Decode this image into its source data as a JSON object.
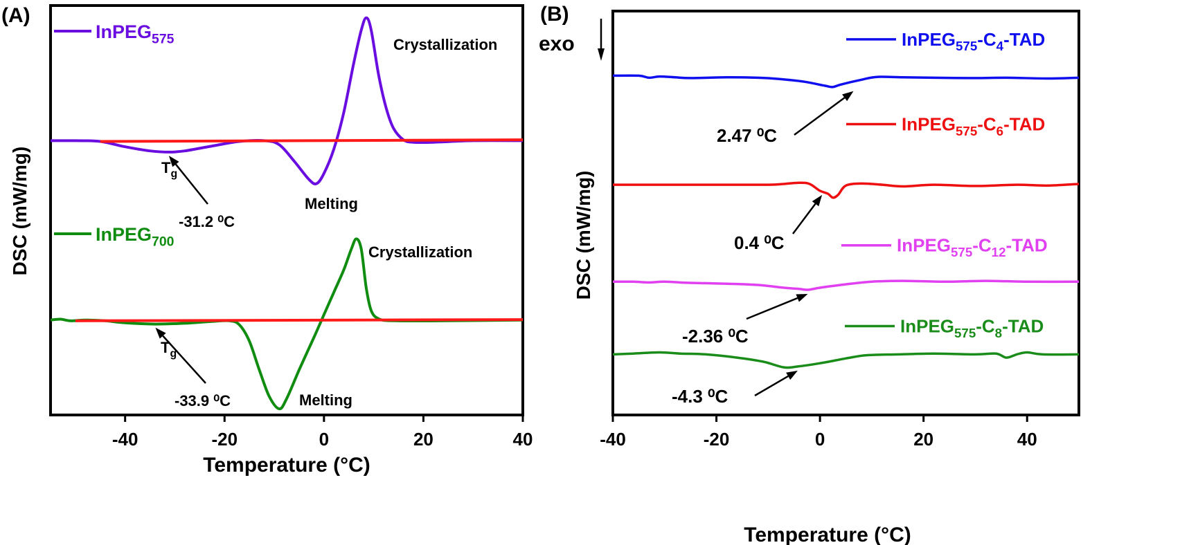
{
  "chart_data": [
    {
      "panel_label": "(A)",
      "type": "line",
      "title": "",
      "xlabel": "Temperature (°C)",
      "ylabel": "DSC (mW/mg)",
      "xlim": [
        -55,
        40
      ],
      "ylim": [
        0,
        10
      ],
      "x_ticks": [
        -40,
        -20,
        0,
        20,
        40
      ],
      "x_tick_labels": [
        "-40",
        "-20",
        "0",
        "20",
        "40"
      ],
      "grid": false,
      "series": [
        {
          "name": "InPEG575",
          "label_main": "InPEG",
          "label_sub": "575",
          "color": "#6a0de0",
          "baseline": 6.7,
          "points": [
            [
              -55,
              6.7
            ],
            [
              -50,
              6.7
            ],
            [
              -45,
              6.68
            ],
            [
              -40,
              6.55
            ],
            [
              -35,
              6.45
            ],
            [
              -31.2,
              6.42
            ],
            [
              -28,
              6.45
            ],
            [
              -22,
              6.58
            ],
            [
              -17,
              6.68
            ],
            [
              -12,
              6.7
            ],
            [
              -9,
              6.6
            ],
            [
              -6,
              6.2
            ],
            [
              -3,
              5.75
            ],
            [
              -1.5,
              5.65
            ],
            [
              0,
              5.9
            ],
            [
              2,
              6.5
            ],
            [
              4,
              7.4
            ],
            [
              6,
              8.6
            ],
            [
              7.5,
              9.4
            ],
            [
              8.5,
              9.7
            ],
            [
              9.5,
              9.4
            ],
            [
              11,
              8.3
            ],
            [
              12.5,
              7.5
            ],
            [
              14,
              7.0
            ],
            [
              16,
              6.72
            ],
            [
              18,
              6.66
            ],
            [
              22,
              6.66
            ],
            [
              30,
              6.7
            ],
            [
              40,
              6.7
            ]
          ],
          "reference_line": [
            [
              -45,
              6.68
            ],
            [
              40,
              6.72
            ]
          ],
          "reference_color": "#ff1a1a",
          "annotations": [
            {
              "text": "Crystallization",
              "x": 9,
              "y": 9.7
            },
            {
              "text": "Melting",
              "x": -2,
              "y": 5.65
            },
            {
              "text_main": "T",
              "text_sub": "g",
              "x": -32,
              "y": 6.4
            },
            {
              "text": "-31.2 ⁰C",
              "value_c": -31.2
            }
          ]
        },
        {
          "name": "InPEG700",
          "label_main": "InPEG",
          "label_sub": "700",
          "color": "#108c10",
          "baseline": 2.3,
          "points": [
            [
              -55,
              2.32
            ],
            [
              -53,
              2.34
            ],
            [
              -51,
              2.3
            ],
            [
              -48,
              2.32
            ],
            [
              -44,
              2.3
            ],
            [
              -40,
              2.25
            ],
            [
              -34,
              2.22
            ],
            [
              -28,
              2.24
            ],
            [
              -23,
              2.28
            ],
            [
              -19,
              2.3
            ],
            [
              -17,
              2.2
            ],
            [
              -15,
              1.8
            ],
            [
              -13,
              1.1
            ],
            [
              -11,
              0.45
            ],
            [
              -9,
              0.15
            ],
            [
              -7.5,
              0.4
            ],
            [
              -5,
              1.1
            ],
            [
              -2,
              1.9
            ],
            [
              0,
              2.45
            ],
            [
              2,
              3.0
            ],
            [
              4,
              3.55
            ],
            [
              5.5,
              4.05
            ],
            [
              6.5,
              4.3
            ],
            [
              7.5,
              4.05
            ],
            [
              8.5,
              3.1
            ],
            [
              9.5,
              2.55
            ],
            [
              11,
              2.35
            ],
            [
              14,
              2.3
            ],
            [
              25,
              2.3
            ],
            [
              40,
              2.32
            ]
          ],
          "reference_line": [
            [
              -50,
              2.3
            ],
            [
              40,
              2.33
            ]
          ],
          "reference_color": "#ff1a1a",
          "annotations": [
            {
              "text": "Crystallization",
              "x": 6.5,
              "y": 4.3
            },
            {
              "text": "Melting",
              "x": -8,
              "y": 0.15
            },
            {
              "text_main": "T",
              "text_sub": "g",
              "x": -34,
              "y": 2.2
            },
            {
              "text": "-33.9 ⁰C",
              "value_c": -33.9
            }
          ]
        }
      ]
    },
    {
      "panel_label": "(B)",
      "type": "line",
      "title": "",
      "xlabel": "Temperature (°C)",
      "ylabel": "DSC (mW/mg)",
      "exo_label": "exo",
      "xlim": [
        -40,
        50
      ],
      "ylim": [
        0,
        10
      ],
      "x_ticks": [
        -40,
        -20,
        0,
        20,
        40
      ],
      "x_tick_labels": [
        "-40",
        "-20",
        "0",
        "20",
        "40"
      ],
      "grid": false,
      "series": [
        {
          "name": "InPEG575-C4-TAD",
          "label_parts": [
            "InPEG",
            "575",
            "-C",
            "4",
            "-TAD"
          ],
          "color": "#1010ee",
          "transition_c": 2.47,
          "transition_label": "2.47 ⁰C",
          "points": [
            [
              -40,
              8.4
            ],
            [
              -35,
              8.4
            ],
            [
              -33,
              8.35
            ],
            [
              -31,
              8.38
            ],
            [
              -28,
              8.36
            ],
            [
              -25,
              8.34
            ],
            [
              -18,
              8.36
            ],
            [
              -12,
              8.35
            ],
            [
              -8,
              8.32
            ],
            [
              -3,
              8.25
            ],
            [
              1,
              8.15
            ],
            [
              2.5,
              8.12
            ],
            [
              4,
              8.18
            ],
            [
              8,
              8.3
            ],
            [
              11,
              8.37
            ],
            [
              16,
              8.36
            ],
            [
              22,
              8.35
            ],
            [
              30,
              8.34
            ],
            [
              36,
              8.35
            ],
            [
              44,
              8.33
            ],
            [
              50,
              8.35
            ]
          ],
          "label_y": 9.3
        },
        {
          "name": "InPEG575-C6-TAD",
          "label_parts": [
            "InPEG",
            "575",
            "-C",
            "6",
            "-TAD"
          ],
          "color": "#ee1010",
          "transition_c": 0.4,
          "transition_label": "0.4 ⁰C",
          "points": [
            [
              -40,
              5.7
            ],
            [
              -30,
              5.7
            ],
            [
              -20,
              5.7
            ],
            [
              -10,
              5.7
            ],
            [
              -7,
              5.72
            ],
            [
              -4,
              5.75
            ],
            [
              -2,
              5.72
            ],
            [
              0,
              5.55
            ],
            [
              1.5,
              5.48
            ],
            [
              2.5,
              5.38
            ],
            [
              3.5,
              5.45
            ],
            [
              5,
              5.68
            ],
            [
              8,
              5.73
            ],
            [
              12,
              5.7
            ],
            [
              16,
              5.66
            ],
            [
              22,
              5.7
            ],
            [
              30,
              5.67
            ],
            [
              38,
              5.7
            ],
            [
              44,
              5.68
            ],
            [
              50,
              5.72
            ]
          ],
          "label_y": 7.2
        },
        {
          "name": "InPEG575-C12-TAD",
          "label_parts": [
            "InPEG",
            "575",
            "-C",
            "12",
            "-TAD"
          ],
          "color": "#e040f0",
          "transition_c": -2.36,
          "transition_label": "-2.36 ⁰C",
          "points": [
            [
              -40,
              3.3
            ],
            [
              -36,
              3.3
            ],
            [
              -33,
              3.28
            ],
            [
              -30,
              3.3
            ],
            [
              -25,
              3.27
            ],
            [
              -18,
              3.25
            ],
            [
              -12,
              3.22
            ],
            [
              -7,
              3.15
            ],
            [
              -4,
              3.12
            ],
            [
              -2.36,
              3.1
            ],
            [
              0,
              3.15
            ],
            [
              4,
              3.22
            ],
            [
              10,
              3.3
            ],
            [
              16,
              3.32
            ],
            [
              24,
              3.3
            ],
            [
              32,
              3.32
            ],
            [
              40,
              3.3
            ],
            [
              50,
              3.3
            ]
          ],
          "label_y": 4.2
        },
        {
          "name": "InPEG575-C8-TAD",
          "label_parts": [
            "InPEG",
            "575",
            "-C",
            "8",
            "-TAD"
          ],
          "color": "#1a8c1a",
          "transition_c": -4.3,
          "transition_label": "-4.3 ⁰C",
          "points": [
            [
              -40,
              1.5
            ],
            [
              -36,
              1.52
            ],
            [
              -31,
              1.55
            ],
            [
              -27,
              1.52
            ],
            [
              -22,
              1.5
            ],
            [
              -16,
              1.42
            ],
            [
              -11,
              1.32
            ],
            [
              -7,
              1.18
            ],
            [
              -4.3,
              1.2
            ],
            [
              0,
              1.28
            ],
            [
              5,
              1.4
            ],
            [
              9,
              1.48
            ],
            [
              15,
              1.5
            ],
            [
              22,
              1.52
            ],
            [
              30,
              1.5
            ],
            [
              34,
              1.52
            ],
            [
              36,
              1.42
            ],
            [
              38,
              1.5
            ],
            [
              40,
              1.55
            ],
            [
              43,
              1.5
            ],
            [
              50,
              1.5
            ]
          ],
          "label_y": 2.2
        }
      ]
    }
  ]
}
